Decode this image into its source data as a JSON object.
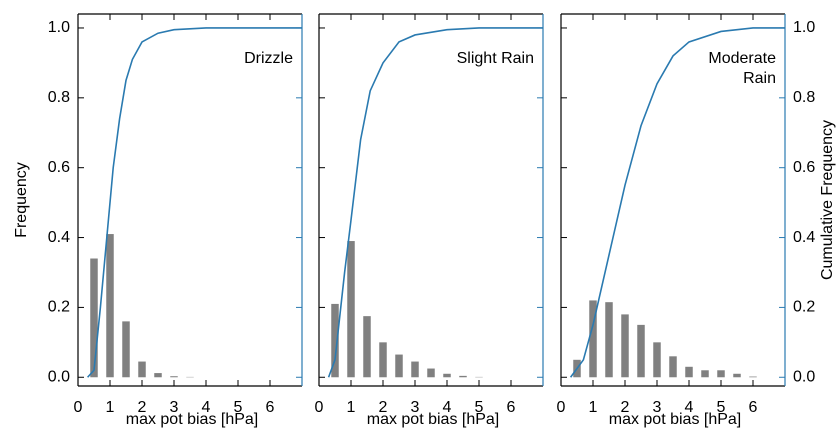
{
  "chart_data": [
    {
      "type": "bar",
      "annotation": [
        "Drizzle"
      ],
      "xlabel": "max pot bias [hPa]",
      "ylabel": "Frequency",
      "x": [
        0.5,
        1.0,
        1.5,
        2.0,
        2.5,
        3.0,
        3.5
      ],
      "values": [
        0.34,
        0.41,
        0.16,
        0.045,
        0.012,
        0.003,
        0.001
      ],
      "color": "#808080",
      "cumulative": {
        "x": [
          0.3,
          0.5,
          0.7,
          0.9,
          1.1,
          1.3,
          1.5,
          1.7,
          2.0,
          2.5,
          3.0,
          4.0,
          7.0
        ],
        "values": [
          0,
          0.02,
          0.2,
          0.4,
          0.6,
          0.74,
          0.85,
          0.91,
          0.96,
          0.985,
          0.995,
          1.0,
          1.0
        ],
        "color": "#2a7ab0",
        "axis": "y2"
      },
      "xlim": [
        0,
        7
      ],
      "xticks": [
        0,
        1,
        2,
        3,
        4,
        5,
        6
      ],
      "ylim": [
        -0.025,
        1.04
      ],
      "yticks": [
        {
          "value": 0,
          "label": "0.0"
        },
        0.2,
        0.4,
        0.6,
        0.8,
        {
          "value": 1,
          "label": "1.0"
        }
      ],
      "ytick_labels": true,
      "y2lim": [
        -0.025,
        1.04
      ],
      "y2ticks": [
        {
          "value": 0,
          "label": "0.0"
        },
        0.2,
        0.4,
        0.6,
        0.8,
        {
          "value": 1,
          "label": "1.0"
        }
      ],
      "y2tick_labels": false
    },
    {
      "type": "bar",
      "annotation": [
        "Slight Rain"
      ],
      "xlabel": "max pot bias [hPa]",
      "x": [
        0.5,
        1.0,
        1.5,
        2.0,
        2.5,
        3.0,
        3.5,
        4.0,
        4.5,
        5.0
      ],
      "values": [
        0.21,
        0.39,
        0.175,
        0.1,
        0.065,
        0.045,
        0.025,
        0.01,
        0.004,
        0.001
      ],
      "color": "#808080",
      "cumulative": {
        "x": [
          0.3,
          0.5,
          0.8,
          1.0,
          1.3,
          1.6,
          2.0,
          2.5,
          3.0,
          4.0,
          5.0,
          7.0
        ],
        "values": [
          0,
          0.05,
          0.3,
          0.45,
          0.68,
          0.82,
          0.9,
          0.96,
          0.98,
          0.995,
          1.0,
          1.0
        ],
        "color": "#2a7ab0",
        "axis": "y2"
      },
      "xlim": [
        0,
        7
      ],
      "xticks": [
        0,
        1,
        2,
        3,
        4,
        5,
        6
      ],
      "ylim": [
        -0.025,
        1.04
      ],
      "yticks": [
        {
          "value": 0,
          "label": "0.0"
        },
        0.2,
        0.4,
        0.6,
        0.8,
        {
          "value": 1,
          "label": "1.0"
        }
      ],
      "ytick_labels": false,
      "y2lim": [
        -0.025,
        1.04
      ],
      "y2ticks": [
        {
          "value": 0,
          "label": "0.0"
        },
        0.2,
        0.4,
        0.6,
        0.8,
        {
          "value": 1,
          "label": "1.0"
        }
      ],
      "y2tick_labels": false
    },
    {
      "type": "bar",
      "annotation": [
        "Moderate",
        "Rain"
      ],
      "xlabel": "max pot bias [hPa]",
      "y2label": "Cumulative Frequency",
      "x": [
        0.5,
        1.0,
        1.5,
        2.0,
        2.5,
        3.0,
        3.5,
        4.0,
        4.5,
        5.0,
        5.5,
        6.0
      ],
      "values": [
        0.05,
        0.22,
        0.215,
        0.18,
        0.15,
        0.1,
        0.06,
        0.03,
        0.02,
        0.02,
        0.01,
        0.002
      ],
      "color": "#808080",
      "cumulative": {
        "x": [
          0.3,
          0.7,
          1.0,
          1.5,
          2.0,
          2.5,
          3.0,
          3.5,
          4.0,
          5.0,
          6.0,
          7.0
        ],
        "values": [
          0,
          0.05,
          0.15,
          0.35,
          0.55,
          0.72,
          0.84,
          0.92,
          0.96,
          0.99,
          1.0,
          1.0
        ],
        "color": "#2a7ab0",
        "axis": "y2"
      },
      "xlim": [
        0,
        7
      ],
      "xticks": [
        0,
        1,
        2,
        3,
        4,
        5,
        6
      ],
      "ylim": [
        -0.025,
        1.04
      ],
      "yticks": [
        {
          "value": 0,
          "label": "0.0"
        },
        0.2,
        0.4,
        0.6,
        0.8,
        {
          "value": 1,
          "label": "1.0"
        }
      ],
      "ytick_labels": false,
      "y2lim": [
        -0.025,
        1.04
      ],
      "y2ticks": [
        {
          "value": 0,
          "label": "0.0"
        },
        0.2,
        0.4,
        0.6,
        0.8,
        {
          "value": 1,
          "label": "1.0"
        }
      ],
      "y2tick_labels": true
    }
  ]
}
